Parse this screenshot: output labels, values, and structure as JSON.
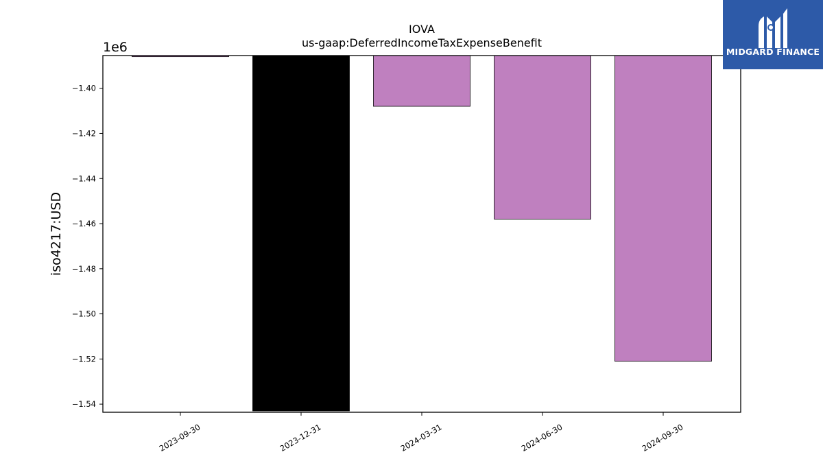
{
  "logo": {
    "text": "MIDGARD FINANCE",
    "icon": "midgard-m-logo-icon",
    "bg_color": "#2d5aa8"
  },
  "chart_data": {
    "type": "bar",
    "title": "IOVA",
    "subtitle": "us-gaap:DeferredIncomeTaxExpenseBenefit",
    "ylabel": "iso4217:USD",
    "xlabel": "",
    "offset_label": "1e6",
    "categories": [
      "2023-09-30",
      "2023-12-31",
      "2024-03-31",
      "2024-06-30",
      "2024-09-30"
    ],
    "values": [
      -1386000,
      -1543000,
      -1408000,
      -1458000,
      -1521000
    ],
    "colors": [
      "#bf80bf",
      "#000000",
      "#bf80bf",
      "#bf80bf",
      "#bf80bf"
    ],
    "ylim": [
      -1543600,
      -1385500
    ],
    "yticks": [
      -1.54,
      -1.52,
      -1.5,
      -1.48,
      -1.46,
      -1.44,
      -1.42,
      -1.4
    ],
    "ytick_labels": [
      "−1.54",
      "−1.52",
      "−1.50",
      "−1.48",
      "−1.46",
      "−1.44",
      "−1.42",
      "−1.40"
    ],
    "grid": false,
    "legend": "none"
  }
}
